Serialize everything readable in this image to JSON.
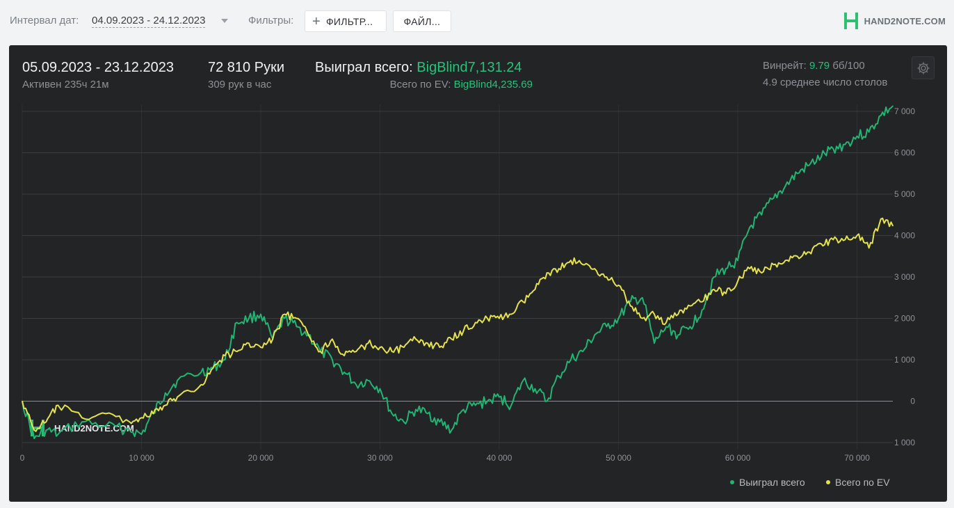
{
  "filters_bar": {
    "interval_label": "Интервал дат:",
    "interval_value": "04.09.2023 - 24.12.2023",
    "filters_label": "Фильтры:",
    "filter_button": "ФИЛЬТР...",
    "file_button": "ФАЙЛ...",
    "brand": "HAND2NOTE.COM"
  },
  "summary": {
    "date_range": "05.09.2023 - 23.12.2023",
    "active_time": "Активен 235ч 21м",
    "hands": "72 810 Руки",
    "hands_per_hour": "309 рук в час",
    "won_label": "Выиграл всего:",
    "won_value": "BigBlind7,131.24",
    "ev_label": "Всего по EV:",
    "ev_value": "BigBlind4,235.69",
    "winrate_label": "Винрейт:",
    "winrate_value": "9.79",
    "winrate_unit": "бб/100",
    "avg_tables": "4.9 среднее число столов"
  },
  "colors": {
    "won": "#21b573",
    "ev": "#e6e34a",
    "panel": "#232426",
    "grid": "#3a3c3f"
  },
  "icons": [
    "gear-icon",
    "hand2note-logo-icon",
    "plus-icon",
    "chevron-down-icon"
  ],
  "watermark": "HAND2NOTE.COM",
  "chart_data": {
    "type": "line",
    "xlim": [
      0,
      73000
    ],
    "ylim": [
      -1000,
      7000
    ],
    "x_ticks": [
      0,
      10000,
      20000,
      30000,
      40000,
      50000,
      60000,
      70000
    ],
    "x_tick_labels": [
      "0",
      "10 000",
      "20 000",
      "30 000",
      "40 000",
      "50 000",
      "60 000",
      "70 000"
    ],
    "y_ticks": [
      -1000,
      0,
      1000,
      2000,
      3000,
      4000,
      5000,
      6000,
      7000
    ],
    "y_tick_labels": [
      "1 000",
      "0",
      "1 000",
      "2 000",
      "3 000",
      "4 000",
      "5 000",
      "6 000",
      "7 000"
    ],
    "y_axis_side": "right",
    "grid": true,
    "legend_position": "bottom-right",
    "series": [
      {
        "name": "Выиграл всего",
        "color": "#21b573",
        "x": [
          0,
          1000,
          2000,
          3000,
          5000,
          7000,
          9000,
          10000,
          11000,
          12000,
          13000,
          15000,
          16000,
          17000,
          18000,
          19000,
          20000,
          21000,
          22000,
          23000,
          24000,
          25000,
          26000,
          27000,
          28000,
          29000,
          30000,
          31000,
          32000,
          33000,
          34000,
          35000,
          36000,
          37000,
          38000,
          39000,
          40000,
          41000,
          42000,
          43000,
          44000,
          45000,
          46000,
          47000,
          48000,
          49000,
          50000,
          51000,
          52000,
          53000,
          54000,
          55000,
          56000,
          57000,
          58000,
          59000,
          60000,
          61000,
          62000,
          63000,
          64000,
          65000,
          66000,
          67000,
          68000,
          69000,
          70000,
          71000,
          72000,
          73000
        ],
        "y": [
          0,
          -900,
          -700,
          -800,
          -500,
          -600,
          -700,
          -800,
          -300,
          200,
          500,
          700,
          800,
          1000,
          1900,
          2000,
          2100,
          1500,
          2000,
          1800,
          1600,
          1200,
          1000,
          700,
          400,
          500,
          300,
          -300,
          -500,
          -200,
          -300,
          -500,
          -700,
          -200,
          -100,
          0,
          100,
          -100,
          500,
          300,
          0,
          600,
          1000,
          1200,
          1600,
          1800,
          2000,
          2400,
          2500,
          1400,
          1800,
          1600,
          1800,
          2200,
          3000,
          3200,
          3400,
          4200,
          4500,
          4900,
          5200,
          5500,
          5700,
          5900,
          6100,
          6200,
          6400,
          6500,
          6900,
          7130
        ]
      },
      {
        "name": "Всего по EV",
        "color": "#e6e34a",
        "x": [
          0,
          1000,
          2000,
          3000,
          5000,
          7000,
          9000,
          10000,
          11000,
          12000,
          13000,
          15000,
          16000,
          17000,
          18000,
          19000,
          20000,
          21000,
          22000,
          23000,
          24000,
          25000,
          26000,
          27000,
          28000,
          29000,
          30000,
          31000,
          32000,
          33000,
          34000,
          35000,
          36000,
          37000,
          38000,
          39000,
          40000,
          41000,
          42000,
          43000,
          44000,
          45000,
          46000,
          47000,
          48000,
          49000,
          50000,
          51000,
          52000,
          53000,
          54000,
          55000,
          56000,
          57000,
          58000,
          59000,
          60000,
          61000,
          62000,
          63000,
          64000,
          65000,
          66000,
          67000,
          68000,
          69000,
          70000,
          71000,
          72000,
          73000
        ],
        "y": [
          0,
          -700,
          -500,
          -100,
          -400,
          -300,
          -500,
          -400,
          -300,
          -100,
          100,
          400,
          800,
          1100,
          1200,
          1400,
          1300,
          1500,
          2100,
          2000,
          1600,
          1200,
          1500,
          1100,
          1200,
          1400,
          1300,
          1200,
          1300,
          1500,
          1400,
          1300,
          1500,
          1700,
          1900,
          2000,
          2000,
          2100,
          2400,
          2700,
          3100,
          3200,
          3400,
          3300,
          3200,
          3000,
          2800,
          2300,
          2000,
          2100,
          1900,
          2100,
          2300,
          2400,
          2700,
          2600,
          2900,
          3200,
          3100,
          3300,
          3400,
          3500,
          3600,
          3800,
          3900,
          3900,
          4000,
          3700,
          4400,
          4236
        ]
      }
    ]
  }
}
